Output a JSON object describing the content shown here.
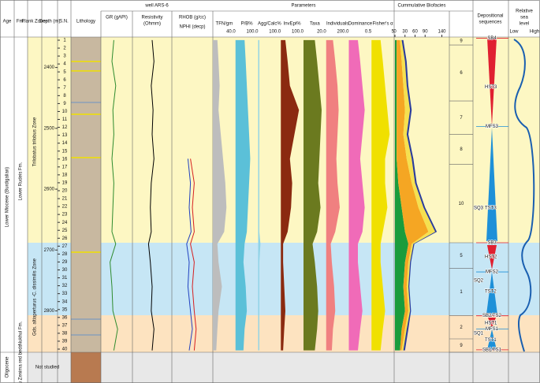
{
  "header": {
    "well": "well ARS-6",
    "parameters": "Parameters",
    "biofacies": "Cummulative Biofacies",
    "sequences": [
      "Depositional",
      "sequences"
    ],
    "sea_level": [
      "Relative",
      "sea",
      "level"
    ],
    "sea_low": "Low",
    "sea_high": "High"
  },
  "columns": [
    "Age",
    "Fm.",
    "Plank Zones",
    "Depth (m)",
    "S.N.",
    "Lithology"
  ],
  "depth": {
    "ylim": [
      2350,
      2868
    ],
    "yticks": [
      2400,
      2500,
      2600,
      2700,
      2800
    ]
  },
  "samples": [
    1,
    2,
    3,
    4,
    5,
    6,
    7,
    8,
    9,
    10,
    11,
    12,
    13,
    14,
    15,
    16,
    17,
    18,
    19,
    20,
    21,
    22,
    23,
    24,
    25,
    26,
    27,
    28,
    29,
    30,
    31,
    32,
    33,
    34,
    35,
    36,
    37,
    38,
    39,
    40
  ],
  "age": [
    "Lower Miocene (Burdigalian)",
    "Oligocene"
  ],
  "formations": [
    "Lower Rudeis Fm.",
    "Nukhul Fm.",
    "Abu Zenima red beds"
  ],
  "zones": [
    "Trilobatus trilobus Zone",
    "Gds. altiaperturus -C. dissimilis Zone"
  ],
  "not_studied": "Not studied",
  "sample_depths": [
    2355,
    2390,
    2430,
    2470,
    2510,
    2550,
    2590,
    2630,
    2670,
    2690,
    2720,
    2760,
    2800,
    2830,
    2865
  ],
  "logs": [
    {
      "label": [
        "GR (gAPI)"
      ],
      "xlim": [
        0,
        150
      ],
      "color": "#2e8b2e",
      "values": [
        60,
        50,
        70,
        55,
        60,
        50,
        60,
        55,
        50,
        70,
        40,
        50,
        55,
        80,
        60
      ]
    },
    {
      "label": [
        "Resistivity",
        "(Ohmm)"
      ],
      "xlim": [
        0,
        200
      ],
      "color": "#000000",
      "values": [
        100,
        110,
        95,
        105,
        100,
        110,
        95,
        90,
        95,
        80,
        90,
        100,
        95,
        110,
        100
      ]
    },
    {
      "label": [
        "RHOB (g/cc)"
      ],
      "xlim": [
        1.95,
        2.95
      ],
      "color": "#d62020",
      "values": [
        null,
        null,
        null,
        null,
        null,
        2.4,
        2.5,
        2.45,
        2.5,
        2.4,
        2.5,
        2.45,
        2.5,
        2.55,
        2.5
      ]
    },
    {
      "label": [
        "NPHI (decp)"
      ],
      "xlim": [
        0.45,
        -0.15
      ],
      "color": "#2040c0",
      "values": [
        null,
        null,
        null,
        null,
        null,
        0.22,
        0.18,
        0.2,
        0.17,
        0.24,
        0.2,
        0.22,
        0.18,
        0.15,
        0.2
      ]
    }
  ],
  "parameters": [
    {
      "label": "TFN/gm",
      "tick": "40.0",
      "xlim": [
        0,
        40
      ],
      "color": "#bdbdbd",
      "values": [
        8,
        10,
        12,
        10,
        14,
        18,
        22,
        24,
        20,
        8,
        10,
        16,
        10,
        8,
        6
      ]
    },
    {
      "label": "P/B%",
      "tick": "100.0",
      "xlim": [
        0,
        100
      ],
      "color": "#5bc0d8",
      "values": [
        40,
        45,
        50,
        55,
        60,
        65,
        60,
        55,
        50,
        40,
        35,
        45,
        50,
        40,
        35
      ]
    },
    {
      "label": "Agg/Calc%",
      "tick": "100.0",
      "xlim": [
        0,
        100
      ],
      "color": "#8fd3e6",
      "values": [
        5,
        5,
        5,
        5,
        5,
        5,
        5,
        5,
        5,
        10,
        5,
        5,
        5,
        5,
        5
      ]
    },
    {
      "label": "InvEpi%",
      "tick": "100.0",
      "xlim": [
        0,
        100
      ],
      "color": "#8b2a10",
      "values": [
        20,
        30,
        40,
        80,
        60,
        40,
        50,
        45,
        30,
        10,
        10,
        15,
        20,
        15,
        10
      ]
    },
    {
      "label": "Taxa",
      "tick": "20.0",
      "xlim": [
        0,
        20
      ],
      "color": "#6b7a1f",
      "values": [
        10,
        12,
        14,
        16,
        15,
        14,
        13,
        15,
        12,
        8,
        10,
        12,
        13,
        12,
        10
      ]
    },
    {
      "label": "Individuals",
      "tick": "200.0",
      "xlim": [
        0,
        200
      ],
      "color": "#f08080",
      "values": [
        60,
        80,
        100,
        110,
        100,
        90,
        100,
        120,
        80,
        40,
        50,
        70,
        80,
        60,
        50
      ]
    },
    {
      "label": "Dominance",
      "tick": "0.5",
      "xlim": [
        0,
        0.5
      ],
      "color": "#f06bb8",
      "values": [
        0.2,
        0.25,
        0.3,
        0.35,
        0.3,
        0.25,
        0.3,
        0.35,
        0.3,
        0.2,
        0.2,
        0.25,
        0.3,
        0.25,
        0.2
      ]
    },
    {
      "label": "Fisher's α",
      "tick": "5",
      "xlim": [
        0,
        5
      ],
      "color": "#f0e000",
      "values": [
        2,
        2.5,
        3,
        3.5,
        4,
        3,
        3,
        3.5,
        2.5,
        2,
        2,
        2.5,
        3,
        2.5,
        2
      ]
    }
  ],
  "biofacies": {
    "xlim": [
      0,
      160
    ],
    "xticks": [
      0,
      30,
      60,
      90,
      140
    ],
    "series": [
      {
        "color": "#1a9c3c",
        "values": [
          5,
          5,
          5,
          5,
          5,
          5,
          10,
          20,
          30,
          40,
          30,
          25,
          30,
          20,
          15
        ]
      },
      {
        "color": "#f5a623",
        "values": [
          10,
          15,
          20,
          25,
          20,
          30,
          40,
          50,
          70,
          10,
          10,
          10,
          10,
          10,
          5
        ]
      },
      {
        "color": "#f5e050",
        "values": [
          5,
          10,
          10,
          15,
          10,
          15,
          10,
          15,
          20,
          5,
          5,
          5,
          5,
          5,
          5
        ]
      },
      {
        "color": "#2a3c9c",
        "values": [
          5,
          5,
          5,
          5,
          5,
          5,
          5,
          5,
          5,
          3,
          3,
          3,
          3,
          5,
          5
        ]
      }
    ],
    "zones": [
      {
        "label": 9,
        "top": 2350,
        "bottom": 2363
      },
      {
        "label": 6,
        "top": 2363,
        "bottom": 2455
      },
      {
        "label": 7,
        "top": 2455,
        "bottom": 2510
      },
      {
        "label": 8,
        "top": 2510,
        "bottom": 2559
      },
      {
        "label": 10,
        "top": 2559,
        "bottom": 2688
      },
      {
        "label": 5,
        "top": 2688,
        "bottom": 2730
      },
      {
        "label": 1,
        "top": 2730,
        "bottom": 2808
      },
      {
        "label": 2,
        "top": 2808,
        "bottom": 2846
      },
      {
        "label": 9,
        "top": 2846,
        "bottom": 2868
      }
    ]
  },
  "sequences": [
    {
      "label": "SB4",
      "depth": 2352
    },
    {
      "label": "HST3",
      "depth": 2432
    },
    {
      "label": "MFS3",
      "depth": 2497
    },
    {
      "label": "SQ3",
      "depth": 2631
    },
    {
      "label": "TST3",
      "depth": 2631
    },
    {
      "label": "SB3",
      "depth": 2688
    },
    {
      "label": "HST2",
      "depth": 2711
    },
    {
      "label": "MFS2",
      "depth": 2736
    },
    {
      "label": "SQ2",
      "depth": 2750
    },
    {
      "label": "TST2",
      "depth": 2768
    },
    {
      "label": "SB2/TS2",
      "depth": 2808
    },
    {
      "label": "HST1",
      "depth": 2820
    },
    {
      "label": "MFS1",
      "depth": 2830
    },
    {
      "label": "SQ1",
      "depth": 2837
    },
    {
      "label": "TST1",
      "depth": 2848
    },
    {
      "label": "SB1/TS1",
      "depth": 2864
    }
  ]
}
